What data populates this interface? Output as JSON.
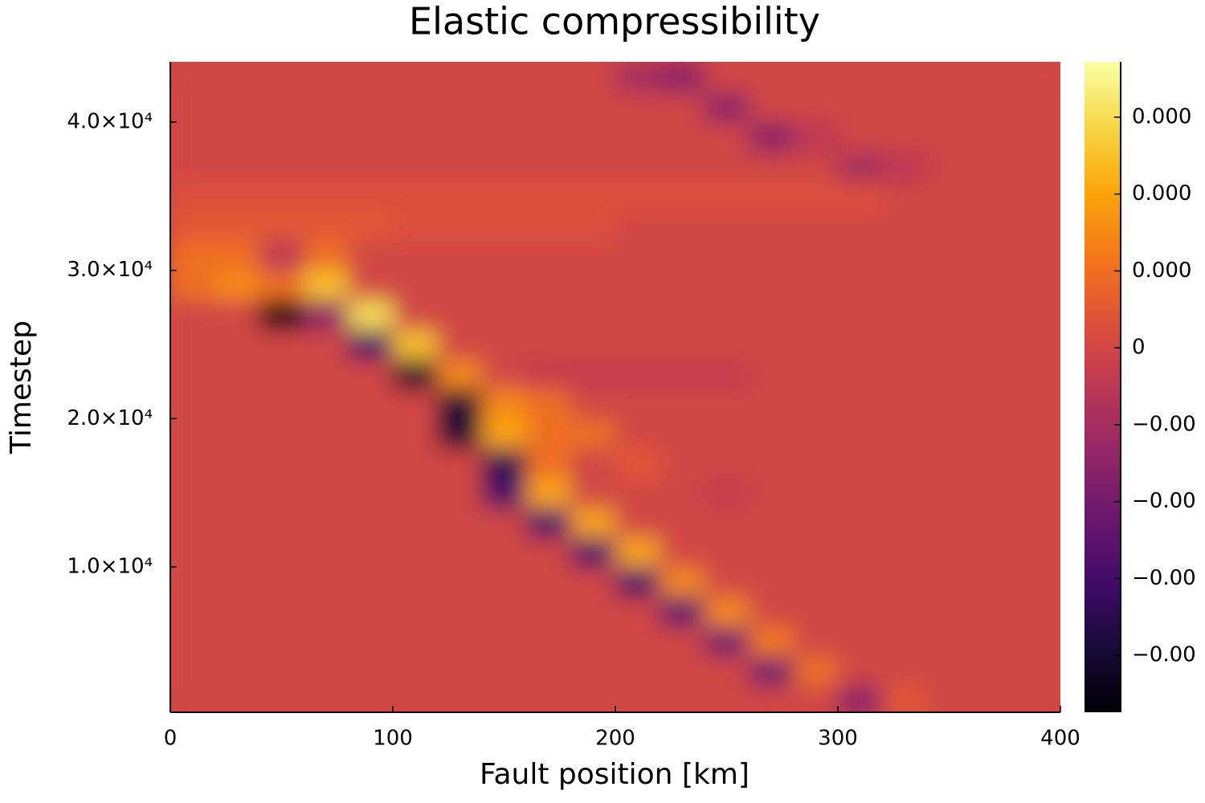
{
  "chart_data": {
    "type": "heatmap",
    "title": "Elastic compressibility",
    "xlabel": "Fault position [km]",
    "ylabel": "Timestep",
    "xlim": [
      0,
      400
    ],
    "xticks": [
      0,
      100,
      200,
      300,
      400
    ],
    "ylim": [
      200,
      44060
    ],
    "yticks": [
      {
        "value": 10000,
        "label": "1.0×10⁴"
      },
      {
        "value": 20000,
        "label": "2.0×10⁴"
      },
      {
        "value": 30000,
        "label": "3.0×10⁴"
      },
      {
        "value": 40000,
        "label": "4.0×10⁴"
      }
    ],
    "colormap": "inferno",
    "zlim": [
      -0.000474,
      0.000372
    ],
    "zticks": [
      {
        "value": 0.0003,
        "label": "0.000"
      },
      {
        "value": 0.0002,
        "label": "0.000"
      },
      {
        "value": 0.0001,
        "label": "0.000"
      },
      0,
      {
        "value": -0.0001,
        "label": "−0.00"
      },
      {
        "value": -0.0002,
        "label": "−0.00"
      },
      {
        "value": -0.0003,
        "label": "−0.00"
      },
      {
        "value": -0.0004,
        "label": "−0.00"
      }
    ],
    "x": [
      10,
      30,
      50,
      70,
      90,
      110,
      130,
      150,
      170,
      190,
      210,
      230,
      250,
      270,
      290,
      310,
      330,
      350,
      370,
      390
    ],
    "y": [
      1000,
      3000,
      5000,
      7000,
      9000,
      11000,
      13000,
      15000,
      17000,
      19000,
      21000,
      23000,
      25000,
      27000,
      29000,
      31000,
      33000,
      35000,
      37000,
      39000,
      41000,
      43000
    ],
    "z": [
      [
        0,
        0,
        0,
        0,
        0,
        0,
        0,
        0,
        0,
        0,
        0,
        0,
        0,
        0,
        0,
        -0.00015,
        5e-05,
        0,
        0,
        0
      ],
      [
        0,
        0,
        0,
        0,
        0,
        0,
        0,
        0,
        0,
        0,
        0,
        0,
        0,
        -0.0002,
        0.0001,
        0,
        0,
        0,
        0,
        0
      ],
      [
        0,
        0,
        0,
        0,
        0,
        0,
        0,
        0,
        0,
        0,
        0,
        0,
        -0.0002,
        0.00012,
        0,
        0,
        0,
        0,
        0,
        0
      ],
      [
        0,
        0,
        0,
        0,
        0,
        0,
        0,
        0,
        0,
        0,
        0,
        -0.00025,
        0.00015,
        0,
        0,
        0,
        0,
        0,
        0,
        0
      ],
      [
        0,
        0,
        0,
        0,
        0,
        0,
        0,
        0,
        0,
        0,
        -0.0003,
        0.00015,
        0,
        0,
        0,
        0,
        0,
        0,
        0,
        0
      ],
      [
        0,
        0,
        0,
        0,
        0,
        0,
        0,
        0,
        0,
        -0.0003,
        0.0002,
        0,
        0,
        0,
        0,
        0,
        0,
        0,
        0,
        0
      ],
      [
        0,
        0,
        0,
        0,
        0,
        0,
        0,
        0,
        -0.0003,
        0.0002,
        0,
        0,
        0,
        0,
        0,
        0,
        0,
        0,
        0,
        0
      ],
      [
        0,
        0,
        0,
        0,
        0,
        0,
        0,
        -0.0003,
        0.0002,
        0,
        0,
        0,
        -3e-05,
        0,
        0,
        0,
        0,
        0,
        0,
        0
      ],
      [
        0,
        0,
        0,
        0,
        0,
        0,
        0,
        -0.00035,
        0.0001,
        0,
        5e-05,
        0,
        0,
        0,
        0,
        0,
        0,
        0,
        0,
        0
      ],
      [
        0,
        0,
        0,
        0,
        0,
        0,
        -0.0004,
        0.0002,
        0.0001,
        0.0001,
        0,
        0,
        0,
        0,
        0,
        0,
        0,
        0,
        0,
        0
      ],
      [
        0,
        0,
        0,
        0,
        0,
        0,
        -0.0004,
        0.00015,
        0.0001,
        0,
        0,
        0,
        0,
        0,
        0,
        0,
        0,
        0,
        0,
        0
      ],
      [
        0,
        0,
        0,
        0,
        0,
        -0.0004,
        0.00015,
        0,
        -3e-05,
        -3e-05,
        -3e-05,
        -3e-05,
        -3e-05,
        0,
        0,
        0,
        0,
        0,
        0,
        0
      ],
      [
        0,
        0,
        0,
        0,
        -0.0003,
        0.00025,
        0,
        0,
        0,
        0,
        0,
        0,
        0,
        0,
        0,
        0,
        0,
        0,
        0,
        0
      ],
      [
        0,
        0,
        -0.00045,
        -0.00015,
        0.0003,
        0,
        0,
        0,
        0,
        0,
        0,
        0,
        0,
        0,
        0,
        0,
        0,
        0,
        0,
        0
      ],
      [
        0.0001,
        0.00015,
        0.0001,
        0.00025,
        0,
        0,
        0,
        0,
        0,
        0,
        0,
        0,
        0,
        0,
        0,
        0,
        0,
        0,
        0,
        0
      ],
      [
        0.0001,
        0.0001,
        -5e-05,
        0.0001,
        0,
        0,
        0,
        0,
        0,
        0,
        0,
        0,
        0,
        0,
        0,
        0,
        0,
        0,
        0,
        0
      ],
      [
        5e-05,
        5e-05,
        5e-05,
        5e-05,
        5e-05,
        3e-05,
        3e-05,
        3e-05,
        3e-05,
        3e-05,
        0,
        0,
        0,
        0,
        0,
        0,
        0,
        0,
        0,
        0
      ],
      [
        3e-05,
        3e-05,
        3e-05,
        3e-05,
        3e-05,
        3e-05,
        3e-05,
        3e-05,
        3e-05,
        3e-05,
        3e-05,
        3e-05,
        3e-05,
        3e-05,
        3e-05,
        3e-05,
        0,
        0,
        0,
        0
      ],
      [
        0,
        0,
        0,
        0,
        0,
        0,
        0,
        0,
        0,
        0,
        0,
        0,
        0,
        0,
        0,
        -0.0001,
        -5e-05,
        0,
        0,
        0
      ],
      [
        0,
        0,
        0,
        0,
        0,
        0,
        0,
        0,
        0,
        0,
        0,
        0,
        0,
        -0.00015,
        -5e-05,
        0,
        0,
        0,
        0,
        0
      ],
      [
        0,
        0,
        0,
        0,
        0,
        0,
        0,
        0,
        0,
        0,
        0,
        0,
        -0.00015,
        0,
        0,
        0,
        0,
        0,
        0,
        0
      ],
      [
        0,
        0,
        0,
        0,
        0,
        0,
        0,
        0,
        0,
        0,
        -0.0001,
        -0.00015,
        0,
        0,
        0,
        0,
        0,
        0,
        0,
        0
      ]
    ]
  }
}
